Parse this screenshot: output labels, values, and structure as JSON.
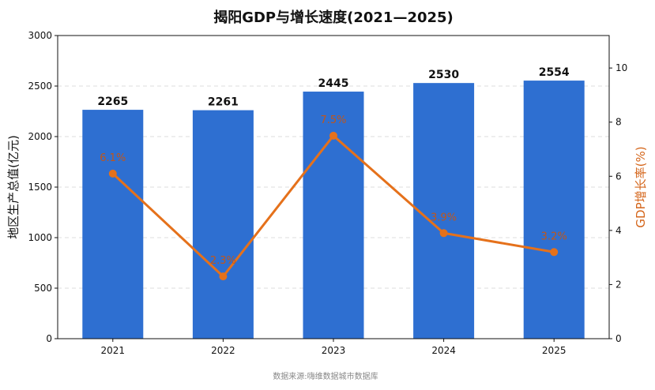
{
  "chart_data": {
    "type": "bar",
    "title": "揭阳GDP与增长速度(2021—2025)",
    "categories": [
      "2021",
      "2022",
      "2023",
      "2024",
      "2025"
    ],
    "series": [
      {
        "name": "地区生产总值(亿元)",
        "type": "bar",
        "axis": "left",
        "values": [
          2265,
          2261,
          2445,
          2530,
          2554
        ],
        "labels": [
          "2265",
          "2261",
          "2445",
          "2530",
          "2554"
        ]
      },
      {
        "name": "GDP增长率(%)",
        "type": "line",
        "axis": "right",
        "values": [
          6.1,
          2.3,
          7.5,
          3.9,
          3.2
        ],
        "labels": [
          "6.1%",
          "2.3%",
          "7.5%",
          "3.9%",
          "3.2%"
        ]
      }
    ],
    "ylabel": "地区生产总值(亿元)",
    "y2label": "GDP增长率(%)",
    "ylim": [
      0,
      3000
    ],
    "y2lim": [
      0,
      11.2
    ],
    "yticks": [
      0,
      500,
      1000,
      1500,
      2000,
      2500,
      3000
    ],
    "y2ticks": [
      0,
      2,
      4,
      6,
      8,
      10
    ],
    "grid": "horizontal-dashed",
    "colors": {
      "bar": "#2e6fd1",
      "line": "#e5711b"
    }
  },
  "source_note": "数据来源:嗨维数据城市数据库"
}
